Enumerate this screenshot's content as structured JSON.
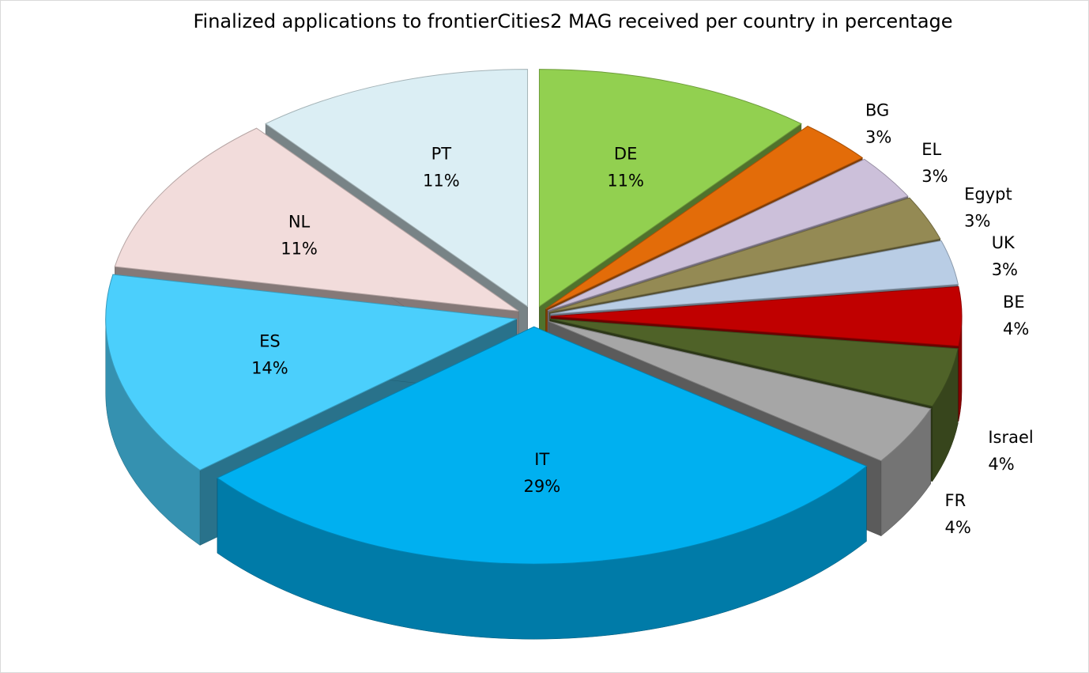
{
  "chart_data": {
    "type": "pie3d",
    "title": "Finalized applications to frontierCities2 MAG received per country in percentage",
    "categories": [
      "DE",
      "BG",
      "EL",
      "Egypt",
      "UK",
      "BE",
      "Israel",
      "FR",
      "IT",
      "ES",
      "NL",
      "PT"
    ],
    "values": [
      11,
      3,
      3,
      3,
      3,
      4,
      4,
      4,
      29,
      14,
      11,
      11
    ],
    "value_labels": [
      "11%",
      "3%",
      "3%",
      "3%",
      "3%",
      "4%",
      "4%",
      "4%",
      "29%",
      "14%",
      "11%",
      "11%"
    ],
    "colors": [
      "#92d050",
      "#e36c09",
      "#ccc0da",
      "#948a54",
      "#b9cde5",
      "#c00000",
      "#4f6228",
      "#a6a6a6",
      "#00b0f0",
      "#4bcffc",
      "#f2dcdb",
      "#dbeef4"
    ]
  }
}
